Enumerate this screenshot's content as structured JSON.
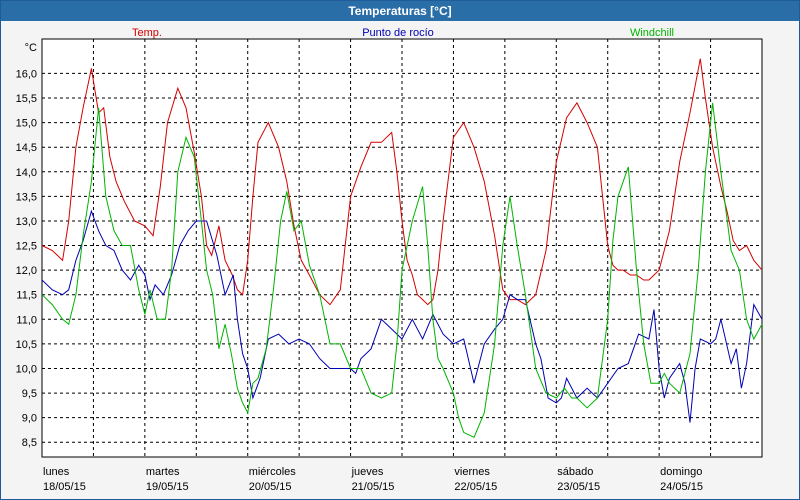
{
  "window": {
    "title": "Temperaturas [°C]"
  },
  "chart_data": {
    "type": "line",
    "title": "Temperaturas [°C]",
    "ylabel": "°C",
    "ylim": [
      8.2,
      16.7
    ],
    "xlim": [
      0,
      7
    ],
    "yticks": [
      "16,0",
      "15,5",
      "15,0",
      "14,5",
      "14,0",
      "13,5",
      "13,0",
      "12,5",
      "12,0",
      "11,5",
      "11,0",
      "10,5",
      "10,0",
      "9,5",
      "9,0",
      "8,5"
    ],
    "ytick_values": [
      16.0,
      15.5,
      15.0,
      14.5,
      14.0,
      13.5,
      13.0,
      12.5,
      12.0,
      11.5,
      11.0,
      10.5,
      10.0,
      9.5,
      9.0,
      8.5
    ],
    "x_day_labels": [
      "lunes",
      "martes",
      "miércoles",
      "jueves",
      "viernes",
      "sábado",
      "domingo"
    ],
    "x_date_labels": [
      "18/05/15",
      "19/05/15",
      "20/05/15",
      "21/05/15",
      "22/05/15",
      "23/05/15",
      "24/05/15"
    ],
    "grid": true,
    "legend_position": "top",
    "series": [
      {
        "name": "Temp.",
        "color": "#d40000",
        "x": [
          0.0,
          0.1,
          0.2,
          0.26,
          0.33,
          0.4,
          0.48,
          0.55,
          0.6,
          0.66,
          0.72,
          0.8,
          0.9,
          1.0,
          1.08,
          1.15,
          1.22,
          1.32,
          1.4,
          1.48,
          1.55,
          1.6,
          1.65,
          1.72,
          1.78,
          1.85,
          1.9,
          1.95,
          2.0,
          2.05,
          2.1,
          2.2,
          2.3,
          2.38,
          2.45,
          2.52,
          2.6,
          2.7,
          2.8,
          2.9,
          3.0,
          3.1,
          3.2,
          3.3,
          3.4,
          3.45,
          3.5,
          3.55,
          3.6,
          3.65,
          3.7,
          3.75,
          3.8,
          3.85,
          3.9,
          4.0,
          4.1,
          4.2,
          4.3,
          4.4,
          4.48,
          4.55,
          4.62,
          4.7,
          4.8,
          4.9,
          5.0,
          5.1,
          5.2,
          5.3,
          5.4,
          5.5,
          5.55,
          5.6,
          5.65,
          5.72,
          5.78,
          5.85,
          5.9,
          6.0,
          6.1,
          6.2,
          6.3,
          6.4,
          6.45,
          6.52,
          6.6,
          6.66,
          6.72,
          6.78,
          6.85,
          6.92,
          7.0
        ],
        "values": [
          12.5,
          12.4,
          12.2,
          13.0,
          14.5,
          15.3,
          16.1,
          15.2,
          15.3,
          14.3,
          13.8,
          13.4,
          13.0,
          12.9,
          12.7,
          13.7,
          15.0,
          15.7,
          15.3,
          14.4,
          13.5,
          12.5,
          12.3,
          12.9,
          12.2,
          11.9,
          11.6,
          11.5,
          12.2,
          13.5,
          14.6,
          15.0,
          14.5,
          13.8,
          12.9,
          12.2,
          11.9,
          11.5,
          11.3,
          11.6,
          13.5,
          14.1,
          14.6,
          14.6,
          14.8,
          14.0,
          13.0,
          12.2,
          11.9,
          11.5,
          11.4,
          11.3,
          11.4,
          12.0,
          13.0,
          14.7,
          15.0,
          14.5,
          13.8,
          12.7,
          11.6,
          11.4,
          11.4,
          11.3,
          11.5,
          12.4,
          14.2,
          15.1,
          15.4,
          15.0,
          14.5,
          12.5,
          12.1,
          12.0,
          12.0,
          11.9,
          11.9,
          11.8,
          11.8,
          12.0,
          12.8,
          14.2,
          15.2,
          16.3,
          15.5,
          14.5,
          13.7,
          13.2,
          12.6,
          12.4,
          12.5,
          12.2,
          12.0
        ]
      },
      {
        "name": "Punto de rocío",
        "color": "#0000b4",
        "x": [
          0.0,
          0.1,
          0.2,
          0.26,
          0.33,
          0.4,
          0.48,
          0.55,
          0.62,
          0.7,
          0.78,
          0.86,
          0.94,
          1.0,
          1.05,
          1.1,
          1.18,
          1.26,
          1.34,
          1.42,
          1.5,
          1.6,
          1.7,
          1.78,
          1.86,
          1.9,
          1.95,
          2.0,
          2.05,
          2.12,
          2.2,
          2.3,
          2.4,
          2.5,
          2.6,
          2.7,
          2.8,
          2.9,
          3.0,
          3.05,
          3.1,
          3.2,
          3.3,
          3.4,
          3.5,
          3.6,
          3.7,
          3.8,
          3.9,
          4.0,
          4.1,
          4.2,
          4.3,
          4.4,
          4.48,
          4.55,
          4.62,
          4.7,
          4.8,
          4.85,
          4.92,
          5.0,
          5.05,
          5.1,
          5.2,
          5.3,
          5.4,
          5.5,
          5.6,
          5.7,
          5.8,
          5.9,
          5.95,
          6.0,
          6.05,
          6.1,
          6.2,
          6.25,
          6.3,
          6.35,
          6.4,
          6.5,
          6.55,
          6.6,
          6.7,
          6.75,
          6.8,
          6.85,
          6.92,
          7.0
        ],
        "values": [
          11.8,
          11.6,
          11.5,
          11.6,
          12.2,
          12.6,
          13.2,
          12.8,
          12.5,
          12.4,
          12.0,
          11.8,
          12.1,
          11.9,
          11.4,
          11.7,
          11.5,
          11.9,
          12.5,
          12.8,
          13.0,
          13.0,
          12.3,
          11.5,
          11.9,
          11.0,
          10.3,
          10.0,
          9.4,
          9.8,
          10.6,
          10.7,
          10.5,
          10.6,
          10.5,
          10.2,
          10.0,
          10.0,
          10.0,
          9.9,
          10.2,
          10.4,
          11.0,
          10.8,
          10.6,
          11.0,
          10.6,
          11.1,
          10.7,
          10.5,
          10.6,
          9.7,
          10.5,
          10.8,
          11.0,
          11.5,
          11.4,
          11.4,
          10.5,
          10.2,
          9.4,
          9.3,
          9.4,
          9.8,
          9.4,
          9.6,
          9.4,
          9.7,
          10.0,
          10.1,
          10.7,
          10.6,
          11.2,
          10.0,
          9.4,
          9.8,
          10.1,
          9.7,
          8.9,
          10.0,
          10.6,
          10.5,
          10.6,
          11.0,
          10.1,
          10.4,
          9.6,
          10.1,
          11.3,
          11.0
        ]
      },
      {
        "name": "Windchill",
        "color": "#00b400",
        "x": [
          0.0,
          0.1,
          0.2,
          0.26,
          0.33,
          0.4,
          0.48,
          0.55,
          0.62,
          0.7,
          0.78,
          0.86,
          0.94,
          1.0,
          1.05,
          1.12,
          1.2,
          1.26,
          1.32,
          1.4,
          1.48,
          1.55,
          1.6,
          1.66,
          1.72,
          1.78,
          1.84,
          1.9,
          1.95,
          2.0,
          2.05,
          2.1,
          2.18,
          2.25,
          2.32,
          2.38,
          2.45,
          2.52,
          2.6,
          2.7,
          2.8,
          2.9,
          3.0,
          3.1,
          3.2,
          3.3,
          3.4,
          3.45,
          3.5,
          3.6,
          3.7,
          3.75,
          3.8,
          3.85,
          3.9,
          4.0,
          4.05,
          4.1,
          4.2,
          4.3,
          4.4,
          4.48,
          4.55,
          4.62,
          4.7,
          4.8,
          4.9,
          5.0,
          5.08,
          5.15,
          5.2,
          5.3,
          5.4,
          5.5,
          5.55,
          5.6,
          5.7,
          5.78,
          5.85,
          5.92,
          6.0,
          6.05,
          6.1,
          6.2,
          6.3,
          6.38,
          6.45,
          6.52,
          6.6,
          6.7,
          6.78,
          6.85,
          6.92,
          7.0
        ],
        "values": [
          11.5,
          11.3,
          11.0,
          10.9,
          11.5,
          12.7,
          13.8,
          15.3,
          13.5,
          12.8,
          12.5,
          12.5,
          11.6,
          11.1,
          11.6,
          11.0,
          11.0,
          12.0,
          14.0,
          14.7,
          14.3,
          13.0,
          12.0,
          11.5,
          10.4,
          10.9,
          10.3,
          9.6,
          9.3,
          9.1,
          9.7,
          9.8,
          10.4,
          11.6,
          13.0,
          13.6,
          12.8,
          13.0,
          12.1,
          11.5,
          10.5,
          10.5,
          10.0,
          10.0,
          9.5,
          9.4,
          9.5,
          10.5,
          12.0,
          13.0,
          13.7,
          12.5,
          11.0,
          10.2,
          10.0,
          9.5,
          9.0,
          8.7,
          8.6,
          9.1,
          10.5,
          12.5,
          13.5,
          12.5,
          11.5,
          10.0,
          9.5,
          9.4,
          9.6,
          9.4,
          9.4,
          9.2,
          9.4,
          11.0,
          12.6,
          13.5,
          14.1,
          12.0,
          10.5,
          9.7,
          9.7,
          9.9,
          9.7,
          9.5,
          10.3,
          12.0,
          14.0,
          15.4,
          14.0,
          12.4,
          12.0,
          11.0,
          10.6,
          10.9
        ]
      }
    ]
  }
}
